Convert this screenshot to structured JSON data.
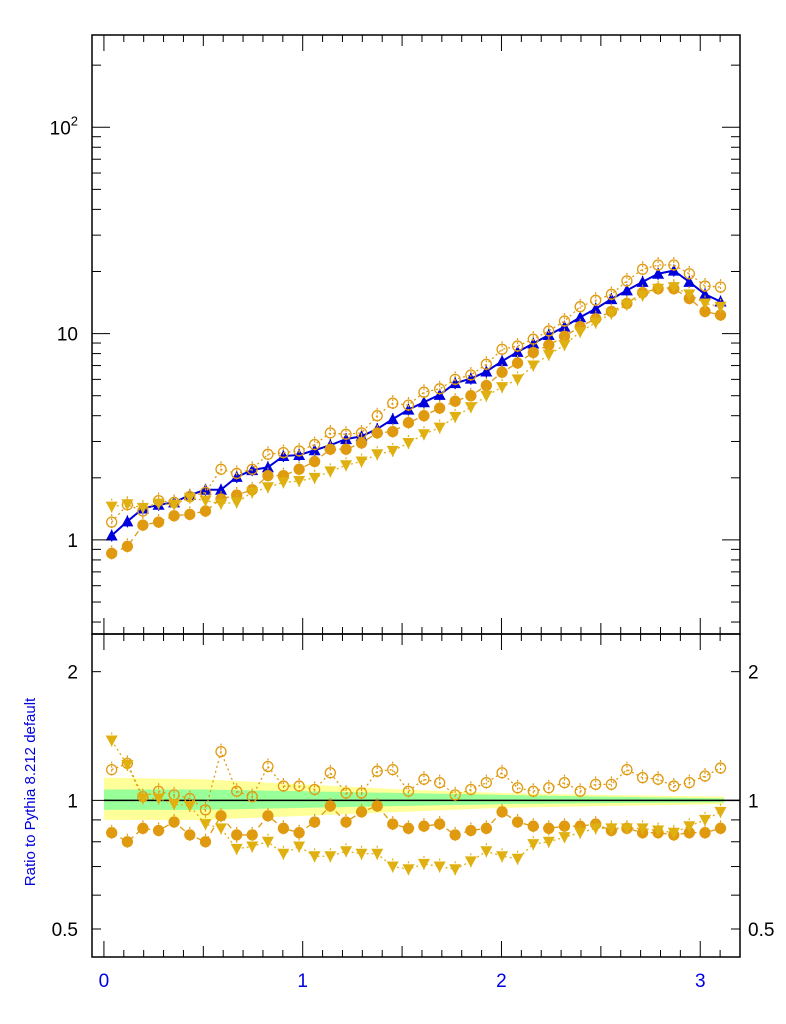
{
  "colors": {
    "mc_main": "#0000dd",
    "mc_orange": "#e09a10",
    "mc_gold": "#e0b010",
    "band_outer": "#ffff99",
    "band_inner": "#99ff99",
    "axis_label": "#0000dd"
  },
  "chart_data": [
    {
      "type": "line",
      "yscale": "log",
      "xlim": [
        -0.06,
        3.2
      ],
      "ylim": [
        0.35,
        280
      ],
      "yticks": [
        {
          "value": 1,
          "label": "1"
        },
        {
          "value": 10,
          "label": "10"
        },
        {
          "value": 100,
          "label": "10²"
        }
      ],
      "x": [
        0.039,
        0.118,
        0.196,
        0.275,
        0.353,
        0.432,
        0.511,
        0.589,
        0.668,
        0.746,
        0.825,
        0.903,
        0.982,
        1.06,
        1.139,
        1.218,
        1.296,
        1.375,
        1.453,
        1.532,
        1.61,
        1.689,
        1.767,
        1.846,
        1.924,
        2.003,
        2.081,
        2.16,
        2.238,
        2.317,
        2.396,
        2.474,
        2.553,
        2.631,
        2.71,
        2.788,
        2.867,
        2.945,
        3.024,
        3.102
      ],
      "series": [
        {
          "style": "blue-triangles-solid",
          "values": [
            1.05,
            1.23,
            1.42,
            1.48,
            1.52,
            1.65,
            1.75,
            1.75,
            2.02,
            2.18,
            2.25,
            2.55,
            2.58,
            2.72,
            2.88,
            3.08,
            3.18,
            3.45,
            3.85,
            4.28,
            4.65,
            5.05,
            5.75,
            6.05,
            6.55,
            7.35,
            8.15,
            8.95,
            9.85,
            10.8,
            12.0,
            13.2,
            14.7,
            16.2,
            17.8,
            19.5,
            20.2,
            17.8,
            15.5,
            14.3
          ]
        },
        {
          "style": "open-orange-circles-dotted",
          "values": [
            1.22,
            1.48,
            1.38,
            1.55,
            1.52,
            1.62,
            1.7,
            2.2,
            2.1,
            2.2,
            2.6,
            2.65,
            2.7,
            2.9,
            3.3,
            3.25,
            3.3,
            4.0,
            4.6,
            4.5,
            5.2,
            5.4,
            6.0,
            6.3,
            7.1,
            8.4,
            8.7,
            9.4,
            10.3,
            11.5,
            13.5,
            14.5,
            15.5,
            18.0,
            20.5,
            21.5,
            21.5,
            19.5,
            17.0,
            16.8
          ]
        },
        {
          "style": "filled-orange-circles-dashed",
          "values": [
            0.86,
            0.93,
            1.18,
            1.22,
            1.31,
            1.33,
            1.38,
            1.58,
            1.65,
            1.75,
            2.05,
            2.05,
            2.2,
            2.4,
            2.75,
            2.75,
            2.95,
            3.3,
            3.35,
            3.7,
            4.0,
            4.35,
            4.7,
            5.0,
            5.6,
            6.5,
            7.2,
            8.1,
            8.8,
            9.7,
            10.8,
            11.8,
            12.8,
            14.0,
            15.8,
            16.5,
            16.5,
            14.8,
            12.8,
            12.3
          ]
        },
        {
          "style": "gold-down-triangles-dotted",
          "values": [
            1.45,
            1.49,
            1.43,
            1.5,
            1.48,
            1.6,
            1.55,
            1.5,
            1.52,
            1.7,
            1.8,
            1.9,
            1.93,
            2.0,
            2.15,
            2.3,
            2.4,
            2.6,
            2.7,
            2.95,
            3.25,
            3.5,
            3.95,
            4.4,
            5.0,
            5.5,
            6.0,
            7.0,
            7.9,
            8.8,
            10.2,
            11.3,
            12.5,
            13.8,
            15.3,
            16.5,
            16.8,
            15.5,
            14.0,
            13.5
          ]
        }
      ]
    },
    {
      "type": "line",
      "ylabel": "Ratio to Pythia 8.212 default",
      "yscale": "log",
      "xlim": [
        -0.06,
        3.2
      ],
      "ylim": [
        0.43,
        2.45
      ],
      "xticks": [
        {
          "value": 0,
          "label": "0"
        },
        {
          "value": 1,
          "label": "1"
        },
        {
          "value": 2,
          "label": "2"
        },
        {
          "value": 3,
          "label": "3"
        }
      ],
      "yticks": [
        {
          "value": 0.5,
          "label": "0.5"
        },
        {
          "value": 1,
          "label": "1"
        },
        {
          "value": 2,
          "label": "2"
        }
      ],
      "reference_line": 1.0,
      "x": [
        0.039,
        0.118,
        0.196,
        0.275,
        0.353,
        0.432,
        0.511,
        0.589,
        0.668,
        0.746,
        0.825,
        0.903,
        0.982,
        1.06,
        1.139,
        1.218,
        1.296,
        1.375,
        1.453,
        1.532,
        1.61,
        1.689,
        1.767,
        1.846,
        1.924,
        2.003,
        2.081,
        2.16,
        2.238,
        2.317,
        2.396,
        2.474,
        2.553,
        2.631,
        2.71,
        2.788,
        2.867,
        2.945,
        3.024,
        3.102
      ],
      "series": [
        {
          "style": "open-orange-circles-dotted",
          "values": [
            1.18,
            1.22,
            1.02,
            1.05,
            1.03,
            1.01,
            0.95,
            1.3,
            1.05,
            1.02,
            1.2,
            1.08,
            1.08,
            1.06,
            1.16,
            1.04,
            1.04,
            1.17,
            1.18,
            1.05,
            1.12,
            1.1,
            1.03,
            1.06,
            1.1,
            1.16,
            1.07,
            1.05,
            1.07,
            1.1,
            1.05,
            1.09,
            1.09,
            1.18,
            1.13,
            1.12,
            1.08,
            1.1,
            1.14,
            1.19
          ]
        },
        {
          "style": "filled-orange-circles-dashed",
          "values": [
            0.84,
            0.8,
            0.86,
            0.85,
            0.89,
            0.83,
            0.8,
            0.92,
            0.83,
            0.83,
            0.92,
            0.86,
            0.84,
            0.89,
            0.97,
            0.89,
            0.94,
            0.97,
            0.88,
            0.86,
            0.87,
            0.88,
            0.83,
            0.85,
            0.86,
            0.94,
            0.89,
            0.87,
            0.86,
            0.87,
            0.87,
            0.88,
            0.85,
            0.86,
            0.84,
            0.84,
            0.83,
            0.84,
            0.84,
            0.86
          ]
        },
        {
          "style": "gold-down-triangles-dotted",
          "values": [
            1.38,
            1.21,
            1.01,
            1.01,
            0.98,
            0.97,
            0.88,
            0.86,
            0.77,
            0.78,
            0.8,
            0.75,
            0.78,
            0.74,
            0.74,
            0.76,
            0.75,
            0.75,
            0.7,
            0.69,
            0.71,
            0.7,
            0.69,
            0.72,
            0.76,
            0.74,
            0.73,
            0.79,
            0.8,
            0.82,
            0.84,
            0.86,
            0.86,
            0.86,
            0.86,
            0.85,
            0.84,
            0.87,
            0.9,
            0.94
          ]
        }
      ],
      "bands": [
        {
          "name": "outer",
          "x": [
            0.0,
            0.5,
            1.0,
            1.5,
            2.0,
            2.5,
            3.12
          ],
          "upper": [
            1.13,
            1.12,
            1.09,
            1.06,
            1.04,
            1.03,
            1.02
          ],
          "lower": [
            0.9,
            0.9,
            0.92,
            0.94,
            0.96,
            0.97,
            0.98
          ]
        },
        {
          "name": "inner",
          "x": [
            0.0,
            0.5,
            1.0,
            1.5,
            2.0,
            2.5,
            3.12
          ],
          "upper": [
            1.06,
            1.06,
            1.05,
            1.04,
            1.03,
            1.02,
            1.01
          ],
          "lower": [
            0.95,
            0.95,
            0.96,
            0.97,
            0.98,
            0.985,
            0.99
          ]
        }
      ]
    }
  ]
}
